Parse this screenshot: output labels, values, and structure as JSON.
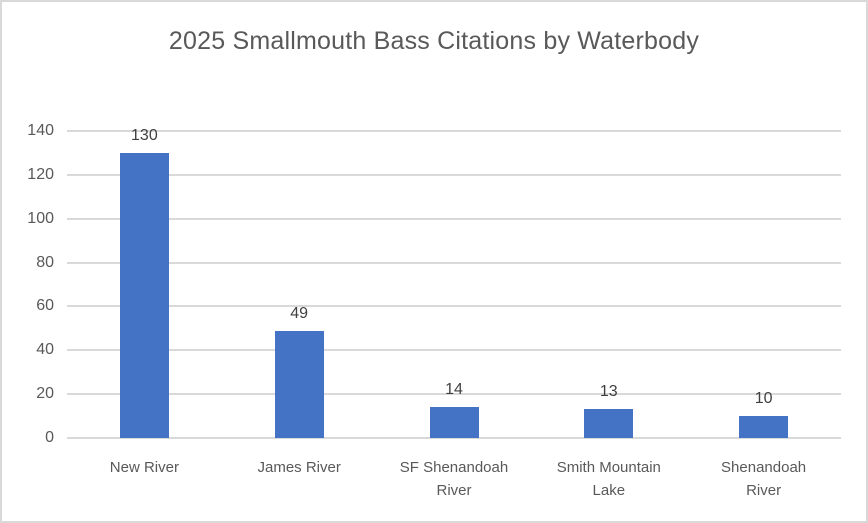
{
  "chart_data": {
    "type": "bar",
    "title": "2025 Smallmouth Bass Citations by Waterbody",
    "categories": [
      "New River",
      "James River",
      "SF Shenandoah River",
      "Smith Mountain Lake",
      "Shenandoah River"
    ],
    "values": [
      130,
      49,
      14,
      13,
      10
    ],
    "xlabel": "",
    "ylabel": "",
    "ylim": [
      0,
      140
    ],
    "ytick_step": 20,
    "yticks": [
      0,
      20,
      40,
      60,
      80,
      100,
      120,
      140
    ],
    "grid": true,
    "data_labels": true,
    "legend": "none",
    "colors": {
      "bar": "#4472c4",
      "gridline": "#d9d9d9",
      "title": "#595959",
      "axis_tick_label": "#595959",
      "category_label": "#595959",
      "data_label": "#404040",
      "chart_border": "#d9d9d9",
      "background": "#ffffff"
    }
  }
}
